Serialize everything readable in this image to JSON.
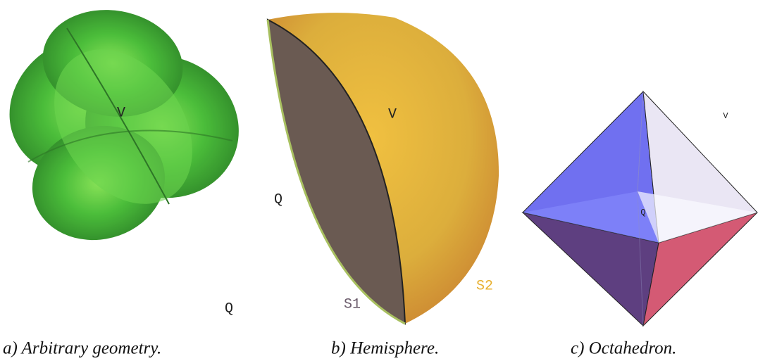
{
  "panels": [
    {
      "caption": "a) Arbitrary geometry.",
      "labels": [
        "V",
        "Q"
      ]
    },
    {
      "caption": "b) Hemisphere.",
      "labels": [
        "V",
        "Q",
        "S1",
        "S2"
      ]
    },
    {
      "caption": "c) Octahedron.",
      "labels": [
        "V",
        "Q"
      ]
    }
  ]
}
